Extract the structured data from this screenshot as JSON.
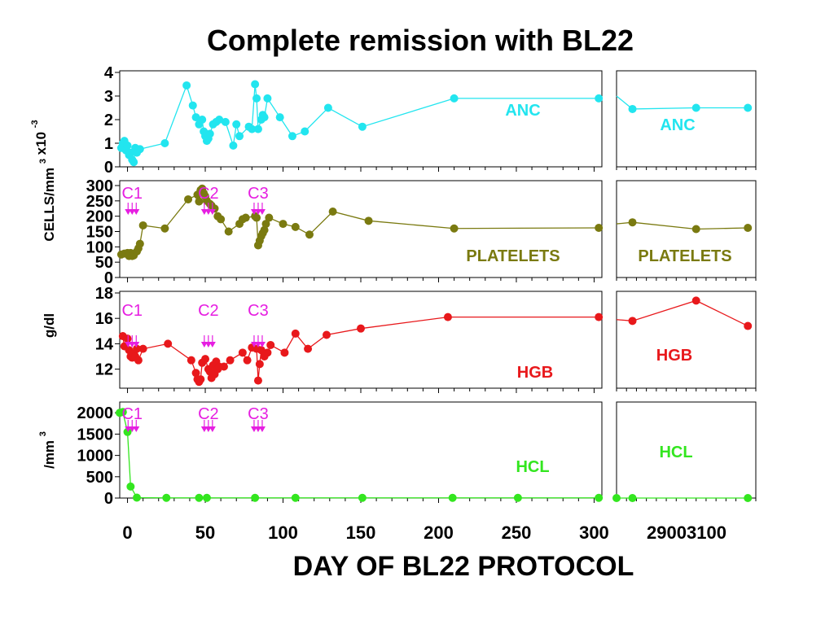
{
  "chart_data": {
    "type": "line",
    "title": "Complete remission with BL22",
    "xlabel": "DAY OF BL22 PROTOCOL",
    "x_ticks_main": [
      "0",
      "50",
      "100",
      "150",
      "200",
      "250",
      "300"
    ],
    "x_ticks_late": [
      "2900",
      "3100"
    ],
    "x_range_main": [
      -5,
      305
    ],
    "x_range_late": [
      2800,
      3150
    ],
    "y_label_cells": "CELLS/mm",
    "y_label_cells_sup1": "3",
    "y_label_cells_mult": "x10",
    "y_label_cells_sup2": "-3",
    "y_label_hgb": "g/dl",
    "y_label_hcl": "/mm",
    "y_label_hcl_sup": "3",
    "colors": {
      "anc": "#22e5ef",
      "platelets": "#7a7a10",
      "hgb": "#e8181b",
      "hcl": "#33e61f",
      "cycle": "#e61ee1"
    },
    "panels": [
      {
        "id": "anc",
        "label": "ANC",
        "ylim": [
          0,
          4
        ],
        "yticks": [
          "0",
          "1",
          "2",
          "3",
          "4"
        ],
        "color": "#22e5ef",
        "cycles": [],
        "main": [
          [
            -4,
            0.8
          ],
          [
            -3,
            1
          ],
          [
            -2,
            1.1
          ],
          [
            -1,
            0.7
          ],
          [
            0,
            0.9
          ],
          [
            1,
            0.5
          ],
          [
            2,
            0.6
          ],
          [
            3,
            0.3
          ],
          [
            4,
            0.2
          ],
          [
            5,
            0.8
          ],
          [
            6,
            0.6
          ],
          [
            8,
            0.75
          ],
          [
            24,
            1
          ],
          [
            38,
            3.45
          ],
          [
            42,
            2.6
          ],
          [
            44,
            2.1
          ],
          [
            46,
            1.8
          ],
          [
            48,
            2
          ],
          [
            49,
            1.5
          ],
          [
            50,
            1.3
          ],
          [
            51,
            1.1
          ],
          [
            52,
            1.2
          ],
          [
            53,
            1.4
          ],
          [
            55,
            1.8
          ],
          [
            57,
            1.9
          ],
          [
            59,
            2
          ],
          [
            63,
            1.9
          ],
          [
            68,
            0.9
          ],
          [
            70,
            1.8
          ],
          [
            72,
            1.3
          ],
          [
            78,
            1.7
          ],
          [
            80,
            1.6
          ],
          [
            82,
            3.5
          ],
          [
            83,
            2.9
          ],
          [
            84,
            1.6
          ],
          [
            86,
            2
          ],
          [
            87,
            2.2
          ],
          [
            88,
            2.1
          ],
          [
            90,
            2.9
          ],
          [
            98,
            2.1
          ],
          [
            106,
            1.3
          ],
          [
            114,
            1.5
          ],
          [
            129,
            2.5
          ],
          [
            151,
            1.7
          ],
          [
            210,
            2.9
          ],
          [
            303,
            2.9
          ]
        ],
        "late": [
          [
            2800,
            3
          ],
          [
            2840,
            2.45
          ],
          [
            3000,
            2.5
          ],
          [
            3130,
            2.5
          ]
        ]
      },
      {
        "id": "platelets",
        "label": "PLATELETS",
        "ylim": [
          0,
          300
        ],
        "yticks": [
          "0",
          "50",
          "100",
          "150",
          "200",
          "250",
          "300"
        ],
        "color": "#7a7a10",
        "cycles": [
          {
            "label": "C1",
            "day": 3
          },
          {
            "label": "C2",
            "day": 52
          },
          {
            "label": "C3",
            "day": 84
          }
        ],
        "main": [
          [
            -4,
            75
          ],
          [
            -2,
            78
          ],
          [
            0,
            80
          ],
          [
            1,
            70
          ],
          [
            2,
            80
          ],
          [
            3,
            70
          ],
          [
            4,
            72
          ],
          [
            6,
            85
          ],
          [
            7,
            95
          ],
          [
            8,
            110
          ],
          [
            10,
            170
          ],
          [
            24,
            160
          ],
          [
            39,
            255
          ],
          [
            45,
            270
          ],
          [
            46,
            248
          ],
          [
            47,
            285
          ],
          [
            48,
            290
          ],
          [
            49,
            275
          ],
          [
            50,
            265
          ],
          [
            51,
            250
          ],
          [
            53,
            240
          ],
          [
            54,
            235
          ],
          [
            56,
            225
          ],
          [
            58,
            200
          ],
          [
            60,
            190
          ],
          [
            65,
            150
          ],
          [
            72,
            175
          ],
          [
            74,
            190
          ],
          [
            76,
            195
          ],
          [
            82,
            200
          ],
          [
            83,
            195
          ],
          [
            84,
            105
          ],
          [
            85,
            120
          ],
          [
            86,
            135
          ],
          [
            87,
            145
          ],
          [
            88,
            155
          ],
          [
            89,
            175
          ],
          [
            91,
            195
          ],
          [
            100,
            175
          ],
          [
            108,
            165
          ],
          [
            117,
            140
          ],
          [
            132,
            215
          ],
          [
            155,
            185
          ],
          [
            210,
            160
          ],
          [
            303,
            162
          ]
        ],
        "late": [
          [
            2800,
            175
          ],
          [
            2840,
            180
          ],
          [
            3000,
            158
          ],
          [
            3130,
            162
          ]
        ]
      },
      {
        "id": "hgb",
        "label": "HGB",
        "ylim": [
          10.5,
          18
        ],
        "yticks": [
          "12",
          "14",
          "16",
          "18"
        ],
        "color": "#e8181b",
        "cycles": [
          {
            "label": "C1",
            "day": 3
          },
          {
            "label": "C2",
            "day": 52
          },
          {
            "label": "C3",
            "day": 84
          }
        ],
        "main": [
          [
            -3,
            14.6
          ],
          [
            -2,
            13.8
          ],
          [
            0,
            14.4
          ],
          [
            1,
            13.5
          ],
          [
            2,
            13
          ],
          [
            3,
            12.9
          ],
          [
            4,
            13.2
          ],
          [
            5,
            13
          ],
          [
            6,
            13.6
          ],
          [
            7,
            12.7
          ],
          [
            10,
            13.6
          ],
          [
            26,
            14
          ],
          [
            41,
            12.7
          ],
          [
            44,
            11.7
          ],
          [
            45,
            11.2
          ],
          [
            46,
            11
          ],
          [
            47,
            11.2
          ],
          [
            48,
            12.5
          ],
          [
            50,
            12.8
          ],
          [
            52,
            12
          ],
          [
            53,
            11.8
          ],
          [
            54,
            11.3
          ],
          [
            55,
            12.3
          ],
          [
            56,
            11.6
          ],
          [
            57,
            12.6
          ],
          [
            58,
            12
          ],
          [
            59,
            12.2
          ],
          [
            62,
            12.2
          ],
          [
            66,
            12.7
          ],
          [
            74,
            13.3
          ],
          [
            77,
            12.7
          ],
          [
            80,
            13.7
          ],
          [
            83,
            13.6
          ],
          [
            84,
            11.1
          ],
          [
            85,
            12.4
          ],
          [
            86,
            13.5
          ],
          [
            88,
            13
          ],
          [
            90,
            13.3
          ],
          [
            92,
            13.9
          ],
          [
            101,
            13.3
          ],
          [
            108,
            14.8
          ],
          [
            116,
            13.6
          ],
          [
            128,
            14.7
          ],
          [
            150,
            15.2
          ],
          [
            206,
            16.1
          ],
          [
            303,
            16.1
          ]
        ],
        "late": [
          [
            2800,
            15.9
          ],
          [
            2840,
            15.8
          ],
          [
            3000,
            17.4
          ],
          [
            3130,
            15.4
          ]
        ]
      },
      {
        "id": "hcl",
        "label": "HCL",
        "ylim": [
          0,
          2100
        ],
        "yticks": [
          "0",
          "500",
          "1000",
          "1500",
          "2000"
        ],
        "color": "#33e61f",
        "cycles": [
          {
            "label": "C1",
            "day": 3
          },
          {
            "label": "C2",
            "day": 52
          },
          {
            "label": "C3",
            "day": 84
          }
        ],
        "main": [
          [
            -5,
            2000
          ],
          [
            -3,
            2020
          ],
          [
            0,
            1550
          ],
          [
            2,
            270
          ],
          [
            6,
            10
          ],
          [
            25,
            5
          ],
          [
            46,
            5
          ],
          [
            51,
            5
          ],
          [
            82,
            5
          ],
          [
            108,
            5
          ],
          [
            151,
            5
          ],
          [
            209,
            5
          ],
          [
            251,
            5
          ],
          [
            303,
            5
          ]
        ],
        "late": [
          [
            2800,
            0
          ],
          [
            2840,
            0
          ],
          [
            3130,
            0
          ]
        ]
      }
    ]
  }
}
